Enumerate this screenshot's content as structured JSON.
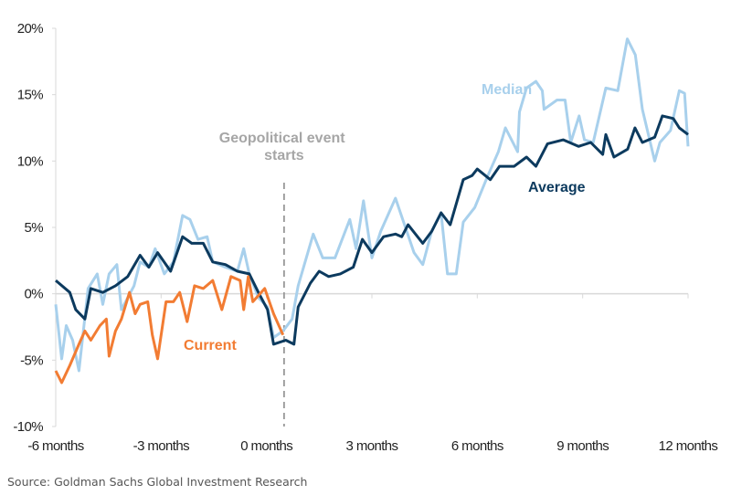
{
  "chart_data": {
    "type": "line",
    "title": "",
    "xlabel": "",
    "ylabel": "",
    "xlim": [
      -6,
      12
    ],
    "ylim": [
      -10,
      20
    ],
    "x_ticks": [
      -6,
      -3,
      0,
      3,
      6,
      9,
      12
    ],
    "x_tick_labels": [
      "-6 months",
      "-3 months",
      "0 months",
      "3 months",
      "6 months",
      "9 months",
      "12 months"
    ],
    "y_ticks": [
      -10,
      -5,
      0,
      5,
      10,
      15,
      20
    ],
    "y_tick_labels": [
      "-10%",
      "-5%",
      "0%",
      "5%",
      "10%",
      "15%",
      "20%"
    ],
    "grid": false,
    "annotation": {
      "lines": [
        "Geopolitical event",
        "starts"
      ],
      "x": 0.5,
      "color": "#a6a6a6"
    },
    "series": [
      {
        "name": "Median",
        "color": "#a8d0ec",
        "x": [
          -6.0,
          -5.83,
          -5.7,
          -5.52,
          -5.34,
          -5.08,
          -4.82,
          -4.66,
          -4.48,
          -4.26,
          -4.13,
          -3.77,
          -3.6,
          -3.35,
          -3.17,
          -2.91,
          -2.65,
          -2.39,
          -2.18,
          -1.95,
          -1.69,
          -1.53,
          -1.17,
          -0.83,
          -0.65,
          -0.49,
          -0.23,
          0.03,
          0.2,
          0.47,
          0.73,
          0.9,
          1.33,
          1.6,
          1.95,
          2.37,
          2.55,
          2.76,
          3.0,
          3.25,
          3.67,
          4.2,
          4.45,
          4.7,
          4.97,
          5.15,
          5.4,
          5.6,
          5.93,
          6.3,
          6.6,
          6.8,
          7.15,
          7.2,
          7.4,
          7.67,
          7.85,
          7.9,
          8.27,
          8.5,
          8.66,
          8.9,
          9.05,
          9.3,
          9.66,
          10.0,
          10.27,
          10.5,
          10.7,
          11.05,
          11.2,
          11.5,
          11.75,
          11.9,
          12.0
        ],
        "values": [
          -0.8,
          -4.9,
          -2.4,
          -3.5,
          -5.8,
          0.4,
          1.5,
          -0.8,
          1.5,
          2.2,
          -1.2,
          0.6,
          2.4,
          2.0,
          3.4,
          1.5,
          2.4,
          5.9,
          5.6,
          4.1,
          4.3,
          2.4,
          2.0,
          1.7,
          3.4,
          1.5,
          -0.3,
          -1.0,
          -3.3,
          -2.8,
          -1.9,
          0.6,
          4.5,
          2.7,
          2.7,
          5.6,
          3.4,
          7.0,
          2.7,
          4.7,
          7.2,
          3.1,
          2.2,
          4.7,
          6.1,
          1.5,
          1.5,
          5.4,
          6.5,
          8.9,
          10.7,
          12.5,
          10.7,
          13.7,
          15.5,
          16.0,
          15.3,
          13.9,
          14.6,
          14.6,
          11.4,
          13.4,
          11.6,
          11.4,
          15.5,
          15.3,
          19.2,
          18.0,
          13.9,
          10.0,
          11.4,
          12.3,
          15.3,
          15.1,
          11.1
        ],
        "label_color": "#a8d0ec"
      },
      {
        "name": "Average",
        "color": "#0c3a5e",
        "x": [
          -6.0,
          -5.6,
          -5.43,
          -5.17,
          -5.0,
          -4.66,
          -4.3,
          -3.95,
          -3.6,
          -3.35,
          -3.1,
          -2.73,
          -2.39,
          -2.13,
          -1.8,
          -1.53,
          -1.17,
          -0.83,
          -0.49,
          -0.23,
          0.03,
          0.2,
          0.55,
          0.78,
          0.9,
          1.25,
          1.5,
          1.77,
          2.1,
          2.47,
          2.73,
          3.0,
          3.33,
          3.67,
          3.85,
          4.03,
          4.45,
          4.7,
          4.97,
          5.23,
          5.6,
          5.85,
          6.0,
          6.37,
          6.63,
          7.05,
          7.4,
          7.67,
          8.0,
          8.45,
          8.88,
          9.23,
          9.57,
          9.66,
          9.89,
          10.28,
          10.49,
          10.7,
          11.05,
          11.27,
          11.58,
          11.75,
          12.0
        ],
        "values": [
          1.0,
          0.1,
          -1.2,
          -1.9,
          0.4,
          0.1,
          0.6,
          1.3,
          2.9,
          2.0,
          3.1,
          1.7,
          4.3,
          3.8,
          3.8,
          2.4,
          2.2,
          1.7,
          1.5,
          0.1,
          -1.2,
          -3.8,
          -3.5,
          -3.8,
          -1.0,
          0.8,
          1.7,
          1.3,
          1.5,
          2.0,
          4.1,
          3.1,
          4.3,
          4.5,
          4.3,
          5.2,
          3.8,
          4.7,
          6.1,
          5.2,
          8.6,
          8.9,
          9.4,
          8.6,
          9.6,
          9.6,
          10.3,
          9.6,
          11.3,
          11.6,
          11.1,
          11.4,
          10.5,
          12.0,
          10.3,
          10.9,
          12.5,
          11.4,
          11.8,
          13.4,
          13.2,
          12.5,
          12.0
        ]
      },
      {
        "name": "Current",
        "color": "#f27c33",
        "x": [
          -6.0,
          -5.83,
          -5.6,
          -5.34,
          -5.17,
          -5.0,
          -4.74,
          -4.56,
          -4.48,
          -4.3,
          -4.13,
          -3.9,
          -3.74,
          -3.6,
          -3.38,
          -3.25,
          -3.1,
          -2.86,
          -2.65,
          -2.47,
          -2.26,
          -2.05,
          -1.8,
          -1.53,
          -1.27,
          -1.01,
          -0.75,
          -0.65,
          -0.52,
          -0.39,
          -0.05,
          0.2,
          0.47
        ],
        "values": [
          -5.8,
          -6.7,
          -5.4,
          -3.8,
          -2.8,
          -3.5,
          -2.4,
          -1.9,
          -4.7,
          -2.8,
          -1.9,
          0.1,
          -1.5,
          -0.8,
          -0.6,
          -3.1,
          -4.9,
          -0.6,
          -0.6,
          0.1,
          -2.1,
          0.6,
          0.4,
          1.0,
          -1.2,
          1.3,
          1.0,
          -1.2,
          1.3,
          -0.6,
          0.4,
          -1.5,
          -3.1
        ]
      }
    ]
  },
  "source": "Source: Goldman Sachs Global Investment Research"
}
